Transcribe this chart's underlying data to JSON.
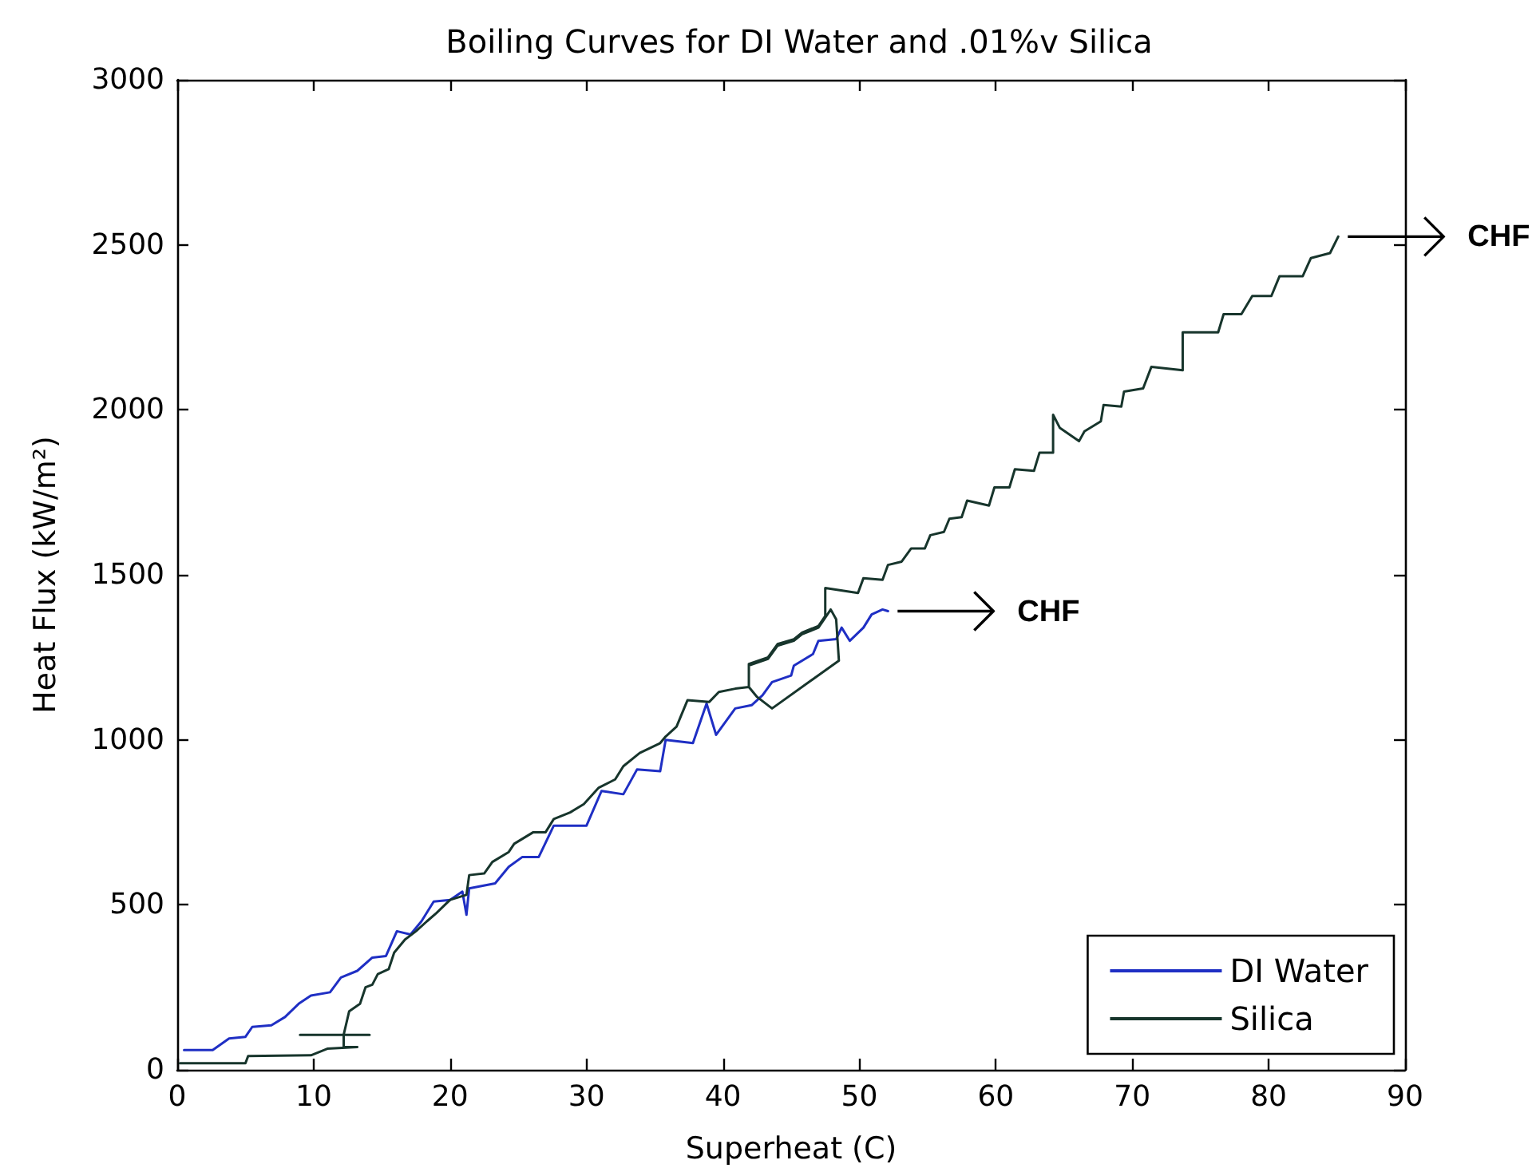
{
  "chart_data": {
    "type": "line",
    "title": "Boiling Curves for DI Water and .01%v Silica",
    "xlabel": "Superheat (C)",
    "ylabel": "Heat Flux (kW/m²)",
    "xlim": [
      0,
      90
    ],
    "xticks": [
      0,
      10,
      20,
      30,
      40,
      50,
      60,
      70,
      80,
      90
    ],
    "ylim": [
      0,
      3000
    ],
    "yticks": [
      0,
      500,
      1000,
      1500,
      2000,
      2500,
      3000
    ],
    "grid": false,
    "legend": "bottom right",
    "marker": "none",
    "line_style": "solid",
    "annotations": [
      "CHF",
      "CHF"
    ],
    "series": [
      {
        "name": "DI Water",
        "color": "#1f2fc4",
        "x": [
          0.5,
          2.6,
          3.8,
          5.0,
          5.5,
          6.9,
          7.9,
          8.9,
          9.8,
          11.2,
          12.0,
          13.2,
          14.3,
          15.3,
          16.1,
          17.1,
          17.9,
          18.8,
          20.0,
          20.9,
          21.2,
          21.4,
          23.3,
          24.3,
          25.3,
          26.5,
          27.6,
          28.6,
          30.0,
          31.1,
          32.7,
          33.7,
          35.4,
          35.8,
          37.8,
          38.8,
          39.5,
          40.9,
          42.1,
          42.9,
          43.6,
          45.0,
          45.2,
          46.6,
          47.0,
          48.3,
          48.7,
          49.3,
          50.3,
          50.9,
          51.7,
          52.1
        ],
        "values": [
          60,
          60,
          95,
          100,
          130,
          135,
          160,
          200,
          225,
          235,
          280,
          300,
          340,
          345,
          420,
          410,
          450,
          510,
          515,
          540,
          470,
          550,
          565,
          615,
          645,
          645,
          740,
          740,
          740,
          845,
          835,
          910,
          905,
          1000,
          990,
          1110,
          1015,
          1095,
          1105,
          1135,
          1175,
          1195,
          1225,
          1260,
          1300,
          1305,
          1340,
          1300,
          1340,
          1380,
          1395,
          1390
        ]
      },
      {
        "name": "Silica",
        "color": "#17352c",
        "x": [
          0.2,
          5.0,
          5.2,
          9.8,
          11.0,
          13.2,
          12.2,
          12.2,
          14.1,
          9.0,
          12.2,
          12.6,
          13.4,
          13.8,
          14.3,
          14.7,
          15.5,
          15.9,
          16.7,
          17.5,
          18.3,
          19.0,
          20.0,
          21.2,
          21.4,
          22.5,
          23.1,
          24.3,
          24.7,
          26.1,
          27.0,
          27.6,
          28.8,
          29.8,
          30.9,
          32.1,
          32.7,
          33.9,
          35.4,
          35.8,
          36.6,
          37.4,
          39.0,
          39.7,
          40.9,
          41.9,
          41.9,
          43.3,
          44.0,
          45.2,
          45.8,
          47.0,
          47.5,
          47.9,
          48.3,
          48.5,
          43.6,
          42.5,
          41.9,
          41.9,
          43.3,
          44.0,
          45.2,
          45.8,
          47.0,
          47.5,
          47.5,
          49.9,
          50.3,
          51.7,
          52.1,
          53.1,
          53.8,
          54.8,
          55.2,
          56.2,
          56.6,
          57.5,
          57.9,
          59.5,
          59.9,
          61.0,
          61.4,
          62.8,
          63.2,
          64.2,
          64.2,
          64.7,
          66.1,
          66.5,
          67.7,
          67.9,
          69.2,
          69.4,
          70.8,
          71.4,
          73.7,
          73.7,
          76.3,
          76.7,
          78.0,
          78.8,
          80.2,
          80.8,
          82.5,
          83.1,
          84.5,
          85.1
        ],
        "values": [
          20,
          20,
          42,
          44,
          64,
          69,
          69,
          106,
          106,
          106,
          106,
          177,
          200,
          250,
          258,
          290,
          305,
          355,
          395,
          420,
          450,
          475,
          515,
          530,
          590,
          595,
          630,
          660,
          685,
          720,
          720,
          760,
          780,
          805,
          855,
          880,
          920,
          960,
          990,
          1010,
          1040,
          1120,
          1115,
          1145,
          1155,
          1160,
          1225,
          1245,
          1285,
          1300,
          1320,
          1340,
          1370,
          1395,
          1365,
          1240,
          1095,
          1130,
          1160,
          1230,
          1250,
          1290,
          1305,
          1325,
          1345,
          1375,
          1460,
          1445,
          1490,
          1485,
          1530,
          1540,
          1580,
          1580,
          1620,
          1630,
          1670,
          1675,
          1725,
          1710,
          1765,
          1765,
          1820,
          1815,
          1870,
          1870,
          1985,
          1945,
          1905,
          1935,
          1965,
          2015,
          2010,
          2055,
          2065,
          2130,
          2120,
          2235,
          2235,
          2290,
          2290,
          2345,
          2345,
          2405,
          2405,
          2460,
          2475,
          2525
        ]
      }
    ]
  }
}
